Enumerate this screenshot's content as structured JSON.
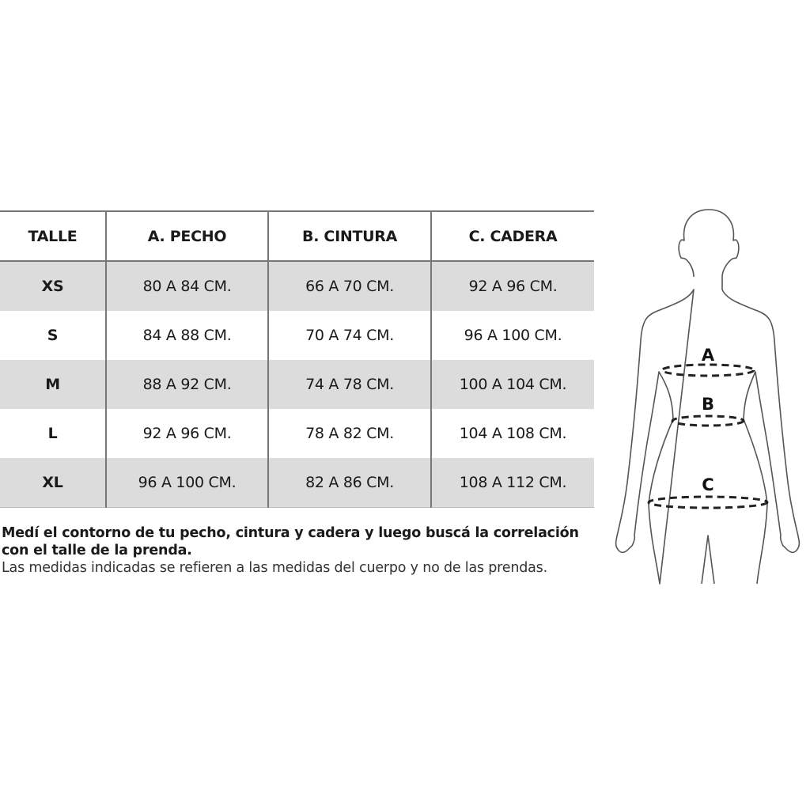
{
  "table": {
    "headers": [
      "TALLE",
      "A. PECHO",
      "B. CINTURA",
      "C. CADERA"
    ],
    "rows": [
      [
        "XS",
        "80 A 84 CM.",
        "66 A 70 CM.",
        "92 A 96 CM."
      ],
      [
        "S",
        "84 A 88 CM.",
        "70 A 74 CM.",
        "96 A 100 CM."
      ],
      [
        "M",
        "88 A 92 CM.",
        "74 A 78 CM.",
        "100 A 104 CM."
      ],
      [
        "L",
        "92 A 96 CM.",
        "78 A 82 CM.",
        "104 A 108 CM."
      ],
      [
        "XL",
        "96 A 100 CM.",
        "82 A 86 CM.",
        "108 A 112 CM."
      ]
    ]
  },
  "notes": {
    "instruction": "Medí el contorno de tu pecho, cintura y cadera y luego buscá la correlación con el talle de la prenda.",
    "disclaimer": "Las medidas indicadas se refieren a las medidas del cuerpo y no de las prendas."
  },
  "figure": {
    "labels": {
      "chest": "A",
      "waist": "B",
      "hip": "C"
    }
  }
}
